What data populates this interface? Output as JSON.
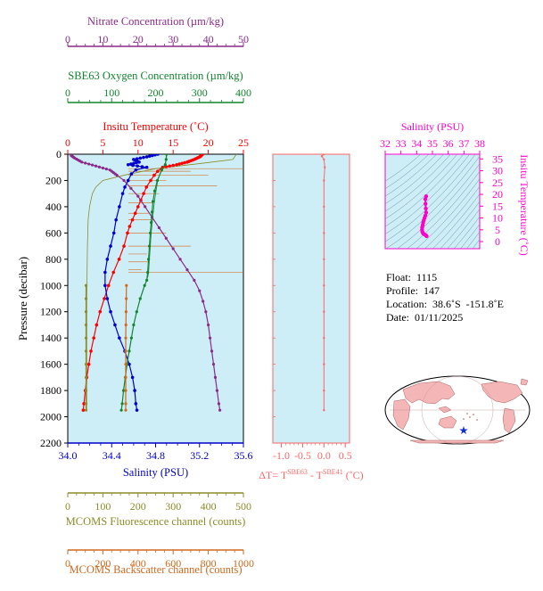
{
  "chart_data": [
    {
      "type": "line",
      "panel": "main-profile",
      "ylabel": "Pressure (decibar)",
      "y_ticks": [
        0,
        200,
        400,
        600,
        800,
        1000,
        1200,
        1400,
        1600,
        1800,
        2000,
        2200
      ],
      "ylim": [
        0,
        2200
      ],
      "y_inverted": true,
      "plot_background": "#cdeef7",
      "axes": {
        "nitrate": {
          "label": "Nitrate Concentration (µm/kg)",
          "ticks": [
            0,
            10,
            20,
            30,
            40,
            50
          ],
          "range": [
            0,
            50
          ],
          "color": "#8b2a8b",
          "position": "top"
        },
        "oxygen": {
          "label": "SBE63 Oxygen Concentration (µm/kg)",
          "ticks": [
            0,
            100,
            200,
            300,
            400
          ],
          "range": [
            0,
            400
          ],
          "color": "#12852e",
          "position": "top"
        },
        "temperature": {
          "label": "Insitu Temperature (˚C)",
          "ticks": [
            0,
            5,
            10,
            15,
            20,
            25
          ],
          "range": [
            0,
            25
          ],
          "color": "#ff0000",
          "position": "top"
        },
        "salinity": {
          "label": "Salinity (PSU)",
          "ticks": [
            "34.0",
            "34.4",
            "34.8",
            "35.2",
            "35.6"
          ],
          "range": [
            34.0,
            35.6
          ],
          "color": "#0000cc",
          "position": "bottom"
        },
        "fluorescence": {
          "label": "MCOMS Fluorescence channel (counts)",
          "ticks": [
            0,
            100,
            200,
            300,
            400,
            500
          ],
          "range": [
            0,
            500
          ],
          "color": "#8c8c2a",
          "position": "bottom"
        },
        "backscatter": {
          "label": "MCOMS Backscatter channel (counts)",
          "ticks": [
            0,
            200,
            400,
            600,
            800,
            1000
          ],
          "range": [
            0,
            1000
          ],
          "color": "#d2691e",
          "position": "bottom"
        }
      },
      "series": [
        {
          "name": "Insitu Temperature",
          "axis": "temperature",
          "color": "#ff0000",
          "points": [
            [
              19.2,
              0
            ],
            [
              18.8,
              20
            ],
            [
              18.0,
              40
            ],
            [
              17.0,
              60
            ],
            [
              15.5,
              80
            ],
            [
              13.5,
              100
            ],
            [
              12.8,
              130
            ],
            [
              12.3,
              160
            ],
            [
              11.8,
              200
            ],
            [
              11.2,
              250
            ],
            [
              10.8,
              300
            ],
            [
              10.4,
              350
            ],
            [
              10.0,
              400
            ],
            [
              9.6,
              450
            ],
            [
              9.2,
              500
            ],
            [
              8.8,
              550
            ],
            [
              8.5,
              600
            ],
            [
              8.0,
              700
            ],
            [
              7.3,
              800
            ],
            [
              6.5,
              900
            ],
            [
              5.8,
              1000
            ],
            [
              5.2,
              1100
            ],
            [
              4.6,
              1200
            ],
            [
              4.1,
              1300
            ],
            [
              3.7,
              1400
            ],
            [
              3.3,
              1500
            ],
            [
              3.0,
              1600
            ],
            [
              2.7,
              1700
            ],
            [
              2.5,
              1800
            ],
            [
              2.3,
              1900
            ],
            [
              2.2,
              1950
            ]
          ]
        },
        {
          "name": "Salinity",
          "axis": "salinity",
          "color": "#0000cc",
          "points": [
            [
              34.82,
              0
            ],
            [
              34.72,
              20
            ],
            [
              34.6,
              40
            ],
            [
              34.65,
              60
            ],
            [
              34.55,
              80
            ],
            [
              34.72,
              100
            ],
            [
              34.62,
              120
            ],
            [
              34.58,
              150
            ],
            [
              34.55,
              200
            ],
            [
              34.52,
              250
            ],
            [
              34.5,
              300
            ],
            [
              34.47,
              400
            ],
            [
              34.44,
              500
            ],
            [
              34.42,
              600
            ],
            [
              34.39,
              700
            ],
            [
              34.36,
              800
            ],
            [
              34.34,
              900
            ],
            [
              34.34,
              1000
            ],
            [
              34.36,
              1100
            ],
            [
              34.39,
              1200
            ],
            [
              34.43,
              1300
            ],
            [
              34.47,
              1400
            ],
            [
              34.52,
              1500
            ],
            [
              34.56,
              1600
            ],
            [
              34.59,
              1700
            ],
            [
              34.61,
              1800
            ],
            [
              34.62,
              1900
            ],
            [
              34.63,
              1950
            ]
          ]
        },
        {
          "name": "Nitrate Concentration",
          "axis": "nitrate",
          "color": "#8b2a8b",
          "points": [
            [
              1,
              10
            ],
            [
              2,
              30
            ],
            [
              4,
              60
            ],
            [
              8,
              90
            ],
            [
              12,
              120
            ],
            [
              14,
              160
            ],
            [
              16,
              200
            ],
            [
              18,
              260
            ],
            [
              20,
              320
            ],
            [
              22,
              400
            ],
            [
              24,
              480
            ],
            [
              26,
              560
            ],
            [
              28,
              640
            ],
            [
              30,
              720
            ],
            [
              32,
              800
            ],
            [
              34,
              880
            ],
            [
              36,
              960
            ],
            [
              37.5,
              1040
            ],
            [
              38.5,
              1120
            ],
            [
              39.3,
              1200
            ],
            [
              40,
              1300
            ],
            [
              40.5,
              1400
            ],
            [
              41,
              1500
            ],
            [
              41.5,
              1600
            ],
            [
              42,
              1700
            ],
            [
              42.5,
              1800
            ],
            [
              43,
              1900
            ],
            [
              43.3,
              1950
            ]
          ]
        },
        {
          "name": "SBE63 Oxygen Concentration",
          "axis": "oxygen",
          "color": "#12852e",
          "points": [
            [
              225,
              0
            ],
            [
              224,
              40
            ],
            [
              222,
              80
            ],
            [
              214,
              120
            ],
            [
              204,
              200
            ],
            [
              198,
              280
            ],
            [
              194,
              360
            ],
            [
              192,
              440
            ],
            [
              190,
              520
            ],
            [
              188,
              600
            ],
            [
              186,
              700
            ],
            [
              184,
              800
            ],
            [
              182,
              900
            ],
            [
              180,
              960
            ],
            [
              175,
              1000
            ],
            [
              165,
              1100
            ],
            [
              157,
              1200
            ],
            [
              150,
              1300
            ],
            [
              145,
              1400
            ],
            [
              140,
              1500
            ],
            [
              135,
              1600
            ],
            [
              131,
              1700
            ],
            [
              127,
              1800
            ],
            [
              124,
              1900
            ],
            [
              122,
              1950
            ]
          ]
        },
        {
          "name": "MCOMS Fluorescence",
          "axis": "fluorescence",
          "color": "#8c8c2a",
          "points": [
            [
              480,
              0
            ],
            [
              470,
              40
            ],
            [
              300,
              100
            ],
            [
              150,
              160
            ],
            [
              90,
              200
            ],
            [
              70,
              240
            ],
            [
              60,
              300
            ],
            [
              56,
              400
            ],
            [
              54,
              500
            ],
            [
              53,
              600
            ],
            [
              52,
              700
            ],
            [
              52,
              800
            ],
            [
              52,
              900
            ],
            [
              52,
              1000
            ],
            [
              52,
              1100
            ],
            [
              52,
              1200
            ],
            [
              52,
              1300
            ],
            [
              52,
              1400
            ],
            [
              52,
              1500
            ],
            [
              52,
              1600
            ],
            [
              52,
              1700
            ],
            [
              52,
              1800
            ],
            [
              52,
              1900
            ],
            [
              52,
              1950
            ]
          ]
        },
        {
          "name": "MCOMS Backscatter",
          "axis": "backscatter",
          "color": "#d2691e",
          "points": [
            [
              1000,
              60
            ],
            [
              480,
              120
            ],
            [
              420,
              180
            ],
            [
              380,
              240
            ],
            [
              360,
              300
            ],
            [
              350,
              400
            ],
            [
              345,
              500
            ],
            [
              340,
              600
            ],
            [
              338,
              700
            ],
            [
              336,
              800
            ],
            [
              335,
              900
            ],
            [
              334,
              1000
            ],
            [
              333,
              1100
            ],
            [
              332,
              1200
            ],
            [
              331,
              1300
            ],
            [
              330,
              1400
            ],
            [
              330,
              1500
            ],
            [
              330,
              1600
            ],
            [
              330,
              1700
            ],
            [
              330,
              1800
            ],
            [
              330,
              1900
            ],
            [
              330,
              1950
            ]
          ]
        }
      ]
    },
    {
      "type": "line",
      "panel": "delta-t",
      "xlabel": "ΔT= T^SBE63 - T^SBE41 (˚C)",
      "xlabel_parts": {
        "prefix": "ΔT= T",
        "sup1": "SBE63",
        "middle": " - T",
        "sup2": "SBE41",
        "suffix": " (˚C)"
      },
      "x_ticks": [
        "-1.0",
        "-0.5",
        "0.0",
        "0.5"
      ],
      "xlim": [
        -1.2,
        0.6
      ],
      "ylim": [
        0,
        2200
      ],
      "color": "#ff6666",
      "points": [
        [
          0.0,
          0
        ],
        [
          -0.05,
          15
        ],
        [
          0.0,
          40
        ],
        [
          0.02,
          100
        ],
        [
          0.0,
          200
        ],
        [
          0.0,
          400
        ],
        [
          0.0,
          600
        ],
        [
          0.0,
          800
        ],
        [
          0.0,
          1000
        ],
        [
          0.0,
          1200
        ],
        [
          0.0,
          1400
        ],
        [
          0.0,
          1600
        ],
        [
          0.0,
          1800
        ],
        [
          0.0,
          1950
        ]
      ]
    },
    {
      "type": "scatter",
      "panel": "ts-diagram",
      "xlabel": "Salinity (PSU)",
      "ylabel": "Insitu Temperature (˚C)",
      "x_ticks": [
        32,
        33,
        34,
        35,
        36,
        37,
        38
      ],
      "y_ticks": [
        0,
        5,
        10,
        15,
        20,
        25,
        30,
        35
      ],
      "xlim": [
        32,
        38
      ],
      "ylim": [
        -3,
        37
      ],
      "color": "#ff00cc",
      "points": [
        [
          34.6,
          19.2
        ],
        [
          34.55,
          18
        ],
        [
          34.56,
          16
        ],
        [
          34.58,
          14
        ],
        [
          34.6,
          12.3
        ],
        [
          34.55,
          11
        ],
        [
          34.5,
          10
        ],
        [
          34.45,
          9
        ],
        [
          34.41,
          8
        ],
        [
          34.38,
          7
        ],
        [
          34.35,
          6
        ],
        [
          34.34,
          5
        ],
        [
          34.36,
          4.2
        ],
        [
          34.4,
          3.6
        ],
        [
          34.47,
          3.1
        ],
        [
          34.55,
          2.8
        ],
        [
          34.61,
          2.5
        ],
        [
          34.63,
          2.3
        ]
      ]
    }
  ],
  "float_info": {
    "float_label": "Float:",
    "float_value": "1115",
    "profile_label": "Profile:",
    "profile_value": "147",
    "location_label": "Location:",
    "location_value": "38.6˚S  -151.8˚E",
    "date_label": "Date:",
    "date_value": "01/11/2025"
  },
  "map": {
    "land_color": "#f4b6b6",
    "ocean_color": "#ffffff",
    "marker_color": "#1030d0",
    "marker_icon": "star-icon"
  }
}
